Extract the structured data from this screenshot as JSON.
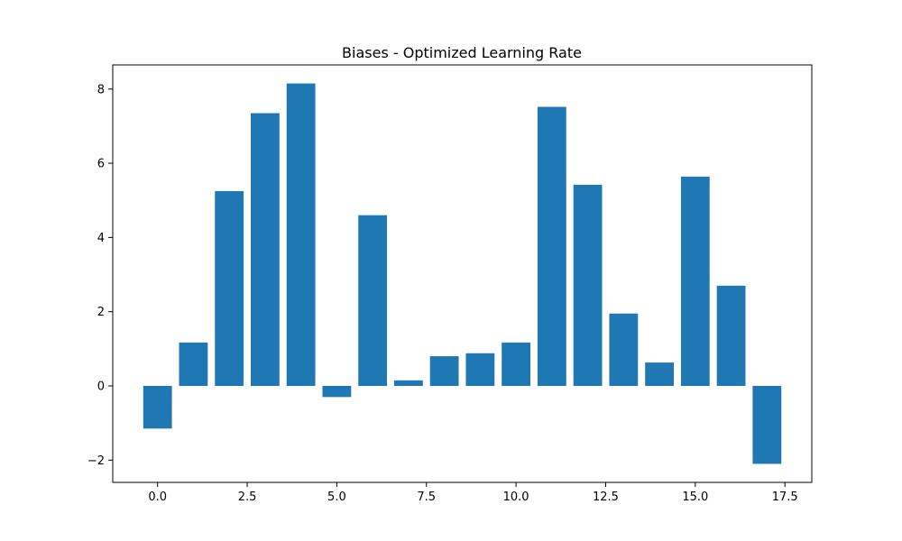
{
  "chart_data": {
    "type": "bar",
    "title": "Biases - Optimized Learning Rate",
    "xlabel": "",
    "ylabel": "",
    "x": [
      0,
      1,
      2,
      3,
      4,
      5,
      6,
      7,
      8,
      9,
      10,
      11,
      12,
      13,
      14,
      15,
      16,
      17
    ],
    "values": [
      -1.15,
      1.17,
      5.25,
      7.35,
      8.15,
      -0.3,
      4.6,
      0.15,
      0.8,
      0.88,
      1.17,
      7.52,
      5.42,
      1.95,
      0.63,
      5.64,
      2.7,
      -2.1
    ],
    "xlim": [
      -1.25,
      18.25
    ],
    "ylim": [
      -2.6,
      8.65
    ],
    "x_ticks": [
      0.0,
      2.5,
      5.0,
      7.5,
      10.0,
      12.5,
      15.0,
      17.5
    ],
    "x_tick_labels": [
      "0.0",
      "2.5",
      "5.0",
      "7.5",
      "10.0",
      "12.5",
      "15.0",
      "17.5"
    ],
    "y_ticks": [
      -2,
      0,
      2,
      4,
      6,
      8
    ],
    "y_tick_labels": [
      "−2",
      "0",
      "2",
      "4",
      "6",
      "8"
    ],
    "bar_width": 0.8,
    "grid": false,
    "legend": "none",
    "colors": {
      "bar": "#1f77b4",
      "axis": "#000000",
      "background": "#ffffff"
    }
  }
}
